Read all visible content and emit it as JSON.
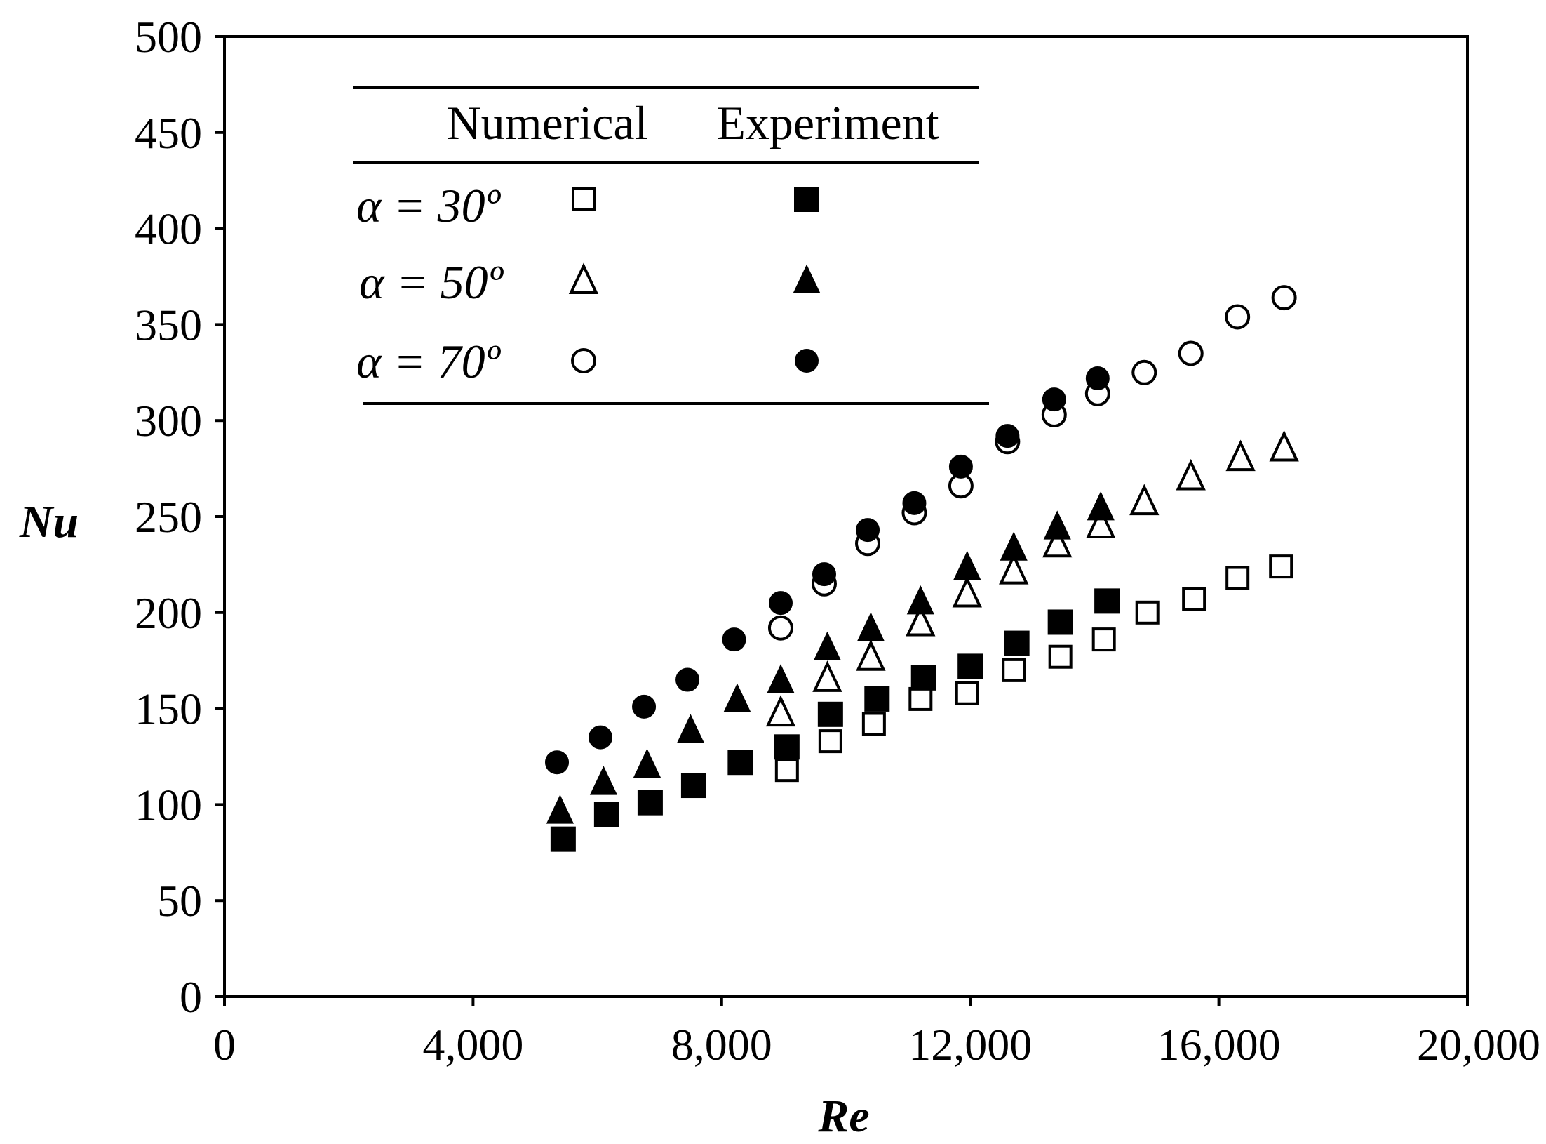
{
  "chart_data": {
    "type": "scatter",
    "title": "",
    "xlabel": "Re",
    "ylabel": "Nu",
    "xlim": [
      0,
      20000
    ],
    "ylim": [
      0,
      500
    ],
    "xticks": [
      0,
      4000,
      8000,
      12000,
      16000,
      20000
    ],
    "xtick_labels": [
      "0",
      "4,000",
      "8,000",
      "12,000",
      "16,000",
      "20,000"
    ],
    "yticks": [
      0,
      50,
      100,
      150,
      200,
      250,
      300,
      350,
      400,
      450,
      500
    ],
    "ytick_labels": [
      "0",
      "50",
      "100",
      "150",
      "200",
      "250",
      "300",
      "350",
      "400",
      "450",
      "500"
    ],
    "grid": false,
    "legend": {
      "placement": "top-left",
      "column_headers": [
        "Numerical",
        "Experiment"
      ],
      "rows": [
        {
          "label": "α = 30º",
          "numerical_marker": "open-square",
          "experiment_marker": "filled-square"
        },
        {
          "label": "α = 50º",
          "numerical_marker": "open-triangle",
          "experiment_marker": "filled-triangle"
        },
        {
          "label": "α = 70º",
          "numerical_marker": "open-circle",
          "experiment_marker": "filled-circle"
        }
      ]
    },
    "series": [
      {
        "name": "α = 30º Numerical",
        "marker": "open-square",
        "x": [
          9050,
          9750,
          10450,
          11200,
          11950,
          12700,
          13450,
          14150,
          14850,
          15600,
          16300,
          17000
        ],
        "y": [
          118,
          133,
          142,
          155,
          158,
          170,
          177,
          186,
          200,
          207,
          218,
          224
        ]
      },
      {
        "name": "α = 30º Experiment",
        "marker": "filled-square",
        "x": [
          5450,
          6150,
          6850,
          7550,
          8300,
          9050,
          9750,
          10500,
          11250,
          12000,
          12750,
          13450,
          14200
        ],
        "y": [
          82,
          95,
          101,
          110,
          122,
          130,
          147,
          155,
          166,
          172,
          184,
          195,
          206
        ]
      },
      {
        "name": "α = 50º Numerical",
        "marker": "open-triangle",
        "x": [
          8950,
          9700,
          10400,
          11200,
          11950,
          12700,
          13400,
          14100,
          14800,
          15550,
          16350,
          17050
        ],
        "y": [
          148,
          166,
          177,
          195,
          210,
          222,
          236,
          246,
          258,
          271,
          281,
          286
        ]
      },
      {
        "name": "α = 50º Experiment",
        "marker": "filled-triangle",
        "x": [
          5400,
          6100,
          6800,
          7500,
          8250,
          8950,
          9700,
          10400,
          11200,
          11950,
          12700,
          13400,
          14100
        ],
        "y": [
          97,
          112,
          121,
          139,
          155,
          165,
          182,
          192,
          206,
          224,
          234,
          245,
          255
        ]
      },
      {
        "name": "α = 70º Numerical",
        "marker": "open-circle",
        "x": [
          8950,
          9650,
          10350,
          11100,
          11850,
          12600,
          13350,
          14050,
          14800,
          15550,
          16300,
          17050
        ],
        "y": [
          192,
          215,
          236,
          252,
          266,
          289,
          303,
          314,
          325,
          335,
          354,
          364
        ]
      },
      {
        "name": "α = 70º Experiment",
        "marker": "filled-circle",
        "x": [
          5350,
          6050,
          6750,
          7450,
          8200,
          8950,
          9650,
          10350,
          11100,
          11850,
          12600,
          13350,
          14050
        ],
        "y": [
          122,
          135,
          151,
          165,
          186,
          205,
          220,
          243,
          257,
          276,
          292,
          311,
          322
        ]
      }
    ]
  }
}
